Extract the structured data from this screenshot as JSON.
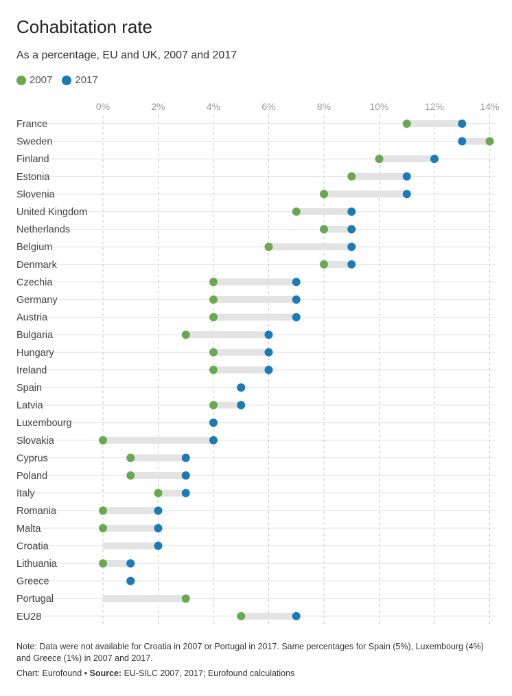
{
  "title": "Cohabitation rate",
  "subtitle": "As a percentage, EU and UK, 2007 and 2017",
  "legend": [
    {
      "label": "2007",
      "color": "#6aa84f"
    },
    {
      "label": "2017",
      "color": "#1a7bb9"
    }
  ],
  "colors": {
    "series_2007": "#6aa84f",
    "series_2017": "#1a7bb9",
    "connector": "#e3e3e3",
    "gridline": "#c8c8c8",
    "rowline": "#d9d9d9"
  },
  "note": "Note: Data were not available for Croatia in 2007 or Portugal in 2017. Same percentages for Spain (5%), Luxembourg (4%) and Greece (1%) in 2007 and 2017.",
  "credit": {
    "chart_by": "Chart: Eurofound •",
    "source_label": "Source:",
    "source_text": "EU-SILC 2007, 2017; Eurofound calculations"
  },
  "chart_data": {
    "type": "dumbbell",
    "title": "Cohabitation rate",
    "subtitle": "As a percentage, EU and UK, 2007 and 2017",
    "xlim": [
      0,
      14
    ],
    "xticks": [
      0,
      2,
      4,
      6,
      8,
      10,
      12,
      14
    ],
    "xtick_labels": [
      "0%",
      "2%",
      "4%",
      "6%",
      "8%",
      "10%",
      "12%",
      "14%"
    ],
    "grid": true,
    "legend_position": "top-left",
    "series_names": [
      "2007",
      "2017"
    ],
    "rows": [
      {
        "country": "France",
        "y2007": 11,
        "y2017": 13
      },
      {
        "country": "Sweden",
        "y2007": 14,
        "y2017": 13
      },
      {
        "country": "Finland",
        "y2007": 10,
        "y2017": 12
      },
      {
        "country": "Estonia",
        "y2007": 9,
        "y2017": 11
      },
      {
        "country": "Slovenia",
        "y2007": 8,
        "y2017": 11
      },
      {
        "country": "United Kingdom",
        "y2007": 7,
        "y2017": 9
      },
      {
        "country": "Netherlands",
        "y2007": 8,
        "y2017": 9
      },
      {
        "country": "Belgium",
        "y2007": 6,
        "y2017": 9
      },
      {
        "country": "Denmark",
        "y2007": 8,
        "y2017": 9
      },
      {
        "country": "Czechia",
        "y2007": 4,
        "y2017": 7
      },
      {
        "country": "Germany",
        "y2007": 4,
        "y2017": 7
      },
      {
        "country": "Austria",
        "y2007": 4,
        "y2017": 7
      },
      {
        "country": "Bulgaria",
        "y2007": 3,
        "y2017": 6
      },
      {
        "country": "Hungary",
        "y2007": 4,
        "y2017": 6
      },
      {
        "country": "Ireland",
        "y2007": 4,
        "y2017": 6
      },
      {
        "country": "Spain",
        "y2007": 5,
        "y2017": 5
      },
      {
        "country": "Latvia",
        "y2007": 4,
        "y2017": 5
      },
      {
        "country": "Luxembourg",
        "y2007": 4,
        "y2017": 4
      },
      {
        "country": "Slovakia",
        "y2007": 0,
        "y2017": 4
      },
      {
        "country": "Cyprus",
        "y2007": 1,
        "y2017": 3
      },
      {
        "country": "Poland",
        "y2007": 1,
        "y2017": 3
      },
      {
        "country": "Italy",
        "y2007": 2,
        "y2017": 3
      },
      {
        "country": "Romania",
        "y2007": 0,
        "y2017": 2
      },
      {
        "country": "Malta",
        "y2007": 0,
        "y2017": 2
      },
      {
        "country": "Croatia",
        "y2007": null,
        "y2017": 2
      },
      {
        "country": "Lithuania",
        "y2007": 0,
        "y2017": 1
      },
      {
        "country": "Greece",
        "y2007": 1,
        "y2017": 1
      },
      {
        "country": "Portugal",
        "y2007": 3,
        "y2017": null
      },
      {
        "country": "EU28",
        "y2007": 5,
        "y2017": 7
      }
    ]
  }
}
